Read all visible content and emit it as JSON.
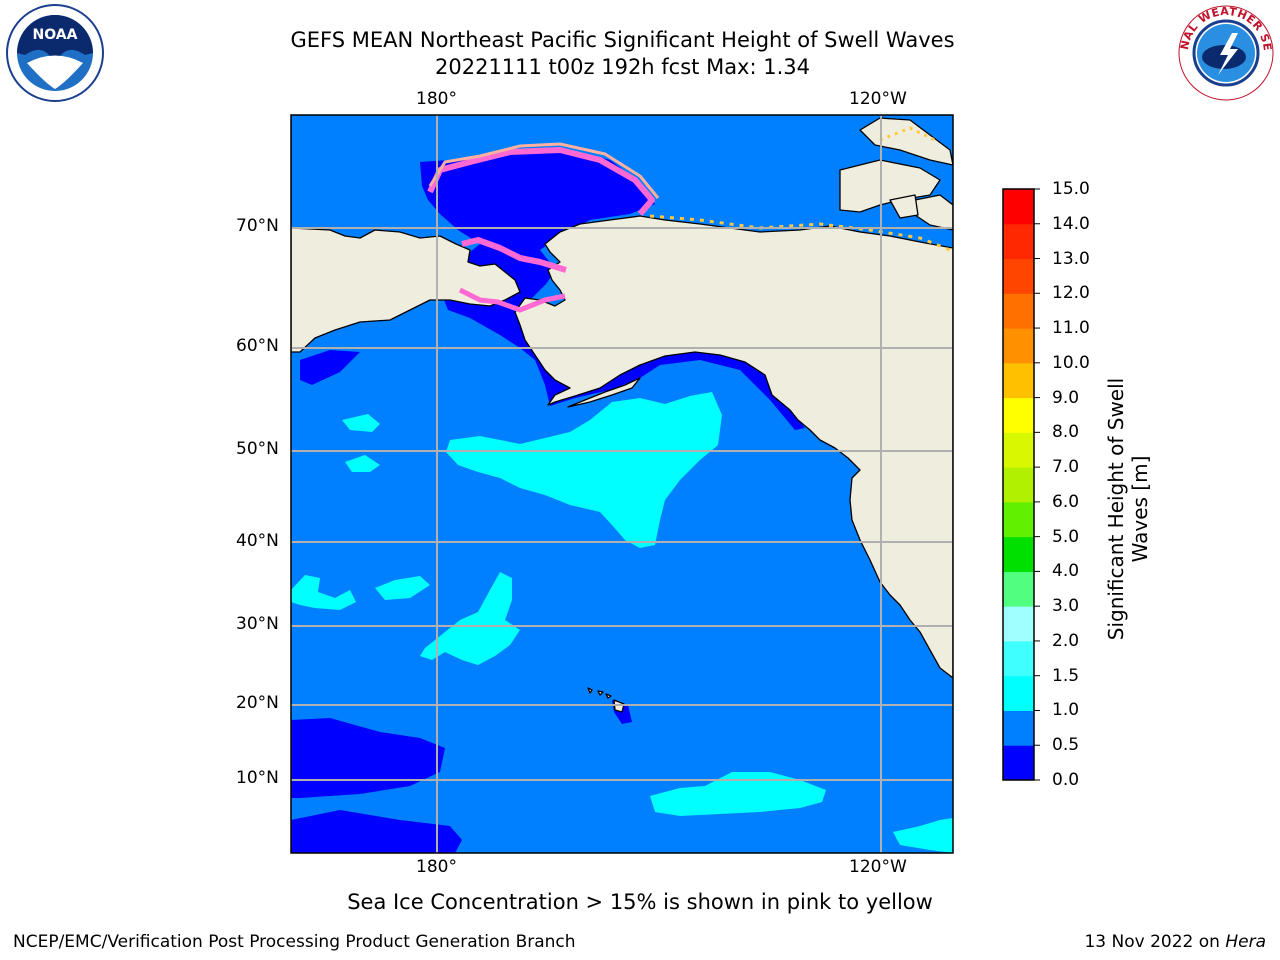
{
  "title": {
    "line1": "GEFS MEAN Northeast Pacific Significant Height of Swell Waves",
    "line2": "20221111 t00z 192h fcst   Max: 1.34"
  },
  "map": {
    "lon_labels": [
      "180°",
      "120°W"
    ],
    "lat_labels": [
      "70°N",
      "60°N",
      "50°N",
      "40°N",
      "30°N",
      "20°N",
      "10°N"
    ],
    "land_color": "#efedde",
    "grid": true
  },
  "colorbar": {
    "label_line1": "Significant Height of Swell",
    "label_line2": "Waves [m]",
    "ticks": [
      "15.0",
      "14.0",
      "13.0",
      "12.0",
      "11.0",
      "10.0",
      "9.0",
      "8.0",
      "7.0",
      "6.0",
      "5.0",
      "4.0",
      "3.0",
      "2.0",
      "1.5",
      "1.0",
      "0.5",
      "0.0"
    ],
    "colors": [
      "#0000ff",
      "#0080ff",
      "#00ffff",
      "#40ffff",
      "#a0ffff",
      "#50ff80",
      "#00e000",
      "#60f000",
      "#b0f000",
      "#d8f800",
      "#ffff00",
      "#ffc000",
      "#ff9000",
      "#ff7000",
      "#ff4500",
      "#ff2800",
      "#ff0000"
    ]
  },
  "logos": {
    "noaa_text": "NOAA",
    "nws_text": "NATIONAL WEATHER SERVICE"
  },
  "caption": "Sea Ice Concentration > 15% is shown in pink to yellow",
  "footer": {
    "left": "NCEP/EMC/Verification Post Processing Product Generation Branch",
    "right_prefix": "13 Nov 2022 on ",
    "right_italic": "Hera"
  }
}
